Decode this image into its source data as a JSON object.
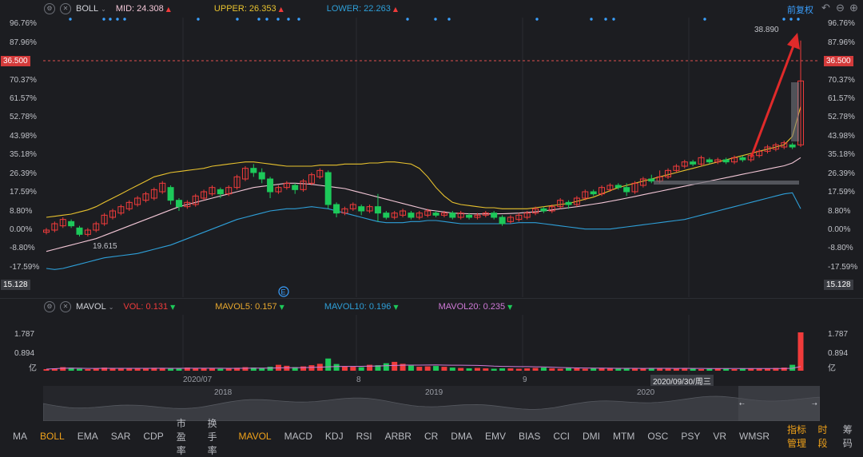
{
  "header": {
    "indicator": "BOLL",
    "mid": "MID: 24.308",
    "upper": "UPPER: 26.353",
    "lower": "LOWER: 22.263",
    "adjust": "前复权"
  },
  "price_axis": {
    "left": [
      "96.76%",
      "87.96%",
      "70.37%",
      "61.57%",
      "52.78%",
      "43.98%",
      "35.18%",
      "26.39%",
      "17.59%",
      "8.80%",
      "0.00%",
      "-8.80%",
      "-17.59%"
    ],
    "right": [
      "96.76%",
      "87.96%",
      "70.37%",
      "61.57%",
      "52.78%",
      "43.98%",
      "35.18%",
      "26.39%",
      "17.59%",
      "8.80%",
      "0.00%",
      "-8.80%",
      "-17.59%"
    ],
    "current_price": "36.500",
    "bottom_left": "15.128",
    "bottom_right": "15.128",
    "high_label": "38.890",
    "low_label": "19.615",
    "event_marker": "E"
  },
  "vol_header": {
    "name": "MAVOL",
    "vol": "VOL: 0.131",
    "mavol5": "MAVOL5: 0.157",
    "mavol10": "MAVOL10: 0.196",
    "mavol20": "MAVOL20: 0.235"
  },
  "vol_axis": {
    "left": [
      "1.787",
      "0.894",
      "亿"
    ],
    "right": [
      "1.787",
      "0.894",
      "亿"
    ]
  },
  "time_axis": {
    "ticks": [
      "2020/07",
      "8",
      "9"
    ],
    "cursor": "2020/09/30/周三"
  },
  "navigator": {
    "years": [
      "2018",
      "2019",
      "2020"
    ]
  },
  "tabs": [
    "MA",
    "BOLL",
    "EMA",
    "SAR",
    "CDP",
    "市盈率",
    "换手率",
    "MAVOL",
    "MACD",
    "KDJ",
    "RSI",
    "ARBR",
    "CR",
    "DMA",
    "EMV",
    "BIAS",
    "CCI",
    "DMI",
    "MTM",
    "OSC",
    "PSY",
    "VR",
    "WMSR",
    "指标管理",
    "时段",
    "筹码"
  ],
  "active_tabs": [
    "BOLL",
    "MAVOL",
    "指标管理",
    "时段"
  ],
  "colors": {
    "up": "#f03b3b",
    "down": "#1dc95a",
    "upper_line": "#e8c22e",
    "mid_line": "#f2c6d6",
    "lower_line": "#2e9fd8",
    "accent": "#f0a21a",
    "ref_line": "#e05050",
    "arrow": "#e02a2a"
  },
  "chart_data": {
    "type": "candlestick",
    "y_unit": "percent change",
    "ylim": [
      -17.59,
      96.76
    ],
    "candles_pct": [
      [
        -1,
        0,
        -2,
        1
      ],
      [
        0,
        3,
        -1,
        4
      ],
      [
        2,
        5,
        1,
        6
      ],
      [
        4,
        2,
        1,
        5
      ],
      [
        1,
        -2,
        -3,
        2
      ],
      [
        -2,
        0,
        -3,
        1
      ],
      [
        0,
        3,
        -1,
        4
      ],
      [
        3,
        7,
        2,
        8
      ],
      [
        6,
        9,
        5,
        10
      ],
      [
        8,
        11,
        7,
        12
      ],
      [
        10,
        13,
        9,
        14
      ],
      [
        12,
        15,
        11,
        16
      ],
      [
        14,
        17,
        13,
        18
      ],
      [
        15,
        19,
        14,
        20
      ],
      [
        18,
        22,
        17,
        23
      ],
      [
        20,
        14,
        12,
        21
      ],
      [
        14,
        11,
        9,
        15
      ],
      [
        11,
        13,
        10,
        14
      ],
      [
        12,
        16,
        11,
        17
      ],
      [
        15,
        18,
        14,
        19
      ],
      [
        17,
        20,
        16,
        21
      ],
      [
        19,
        17,
        15,
        20
      ],
      [
        17,
        20,
        16,
        21
      ],
      [
        20,
        25,
        19,
        26
      ],
      [
        24,
        29,
        23,
        30
      ],
      [
        29,
        27,
        25,
        31
      ],
      [
        27,
        24,
        22,
        29
      ],
      [
        24,
        18,
        15,
        25
      ],
      [
        18,
        20,
        17,
        21
      ],
      [
        20,
        22,
        19,
        23
      ],
      [
        21,
        19,
        17,
        22
      ],
      [
        19,
        23,
        18,
        24
      ],
      [
        22,
        26,
        21,
        27
      ],
      [
        25,
        28,
        24,
        29
      ],
      [
        27,
        12,
        10,
        28
      ],
      [
        12,
        8,
        6,
        13
      ],
      [
        8,
        10,
        7,
        11
      ],
      [
        10,
        12,
        9,
        13
      ],
      [
        11,
        9,
        7,
        12
      ],
      [
        9,
        11,
        8,
        12
      ],
      [
        11,
        8,
        4,
        17
      ],
      [
        8,
        6,
        5,
        9
      ],
      [
        6,
        8,
        5,
        9
      ],
      [
        7,
        9,
        6,
        10
      ],
      [
        8,
        6,
        5,
        9
      ],
      [
        6,
        8,
        5,
        9
      ],
      [
        7,
        9,
        6,
        10
      ],
      [
        8,
        7,
        6,
        9
      ],
      [
        7,
        8,
        6,
        9
      ],
      [
        8,
        6,
        5,
        9
      ],
      [
        6,
        8,
        5,
        9
      ],
      [
        7,
        6,
        5,
        8
      ],
      [
        6,
        7,
        5,
        8
      ],
      [
        7,
        8,
        6,
        9
      ],
      [
        8,
        6,
        5,
        9
      ],
      [
        6,
        3,
        2,
        7
      ],
      [
        4,
        6,
        3,
        7
      ],
      [
        5,
        7,
        4,
        8
      ],
      [
        6,
        8,
        5,
        9
      ],
      [
        8,
        10,
        7,
        11
      ],
      [
        10,
        9,
        8,
        11
      ],
      [
        9,
        11,
        8,
        12
      ],
      [
        11,
        14,
        10,
        15
      ],
      [
        13,
        12,
        10,
        14
      ],
      [
        12,
        15,
        11,
        16
      ],
      [
        15,
        18,
        14,
        19
      ],
      [
        18,
        17,
        16,
        19
      ],
      [
        17,
        20,
        16,
        21
      ],
      [
        19,
        21,
        18,
        22
      ],
      [
        21,
        20,
        19,
        22
      ],
      [
        20,
        18,
        16,
        22
      ],
      [
        18,
        22,
        17,
        23
      ],
      [
        21,
        24,
        20,
        25
      ],
      [
        24,
        23,
        22,
        26
      ],
      [
        23,
        25,
        22,
        28
      ],
      [
        25,
        28,
        24,
        29
      ],
      [
        28,
        30,
        27,
        31
      ],
      [
        30,
        32,
        29,
        33
      ],
      [
        32,
        31,
        30,
        33
      ],
      [
        31,
        34,
        30,
        35
      ],
      [
        33,
        32,
        31,
        34
      ],
      [
        32,
        33,
        31,
        34
      ],
      [
        33,
        32,
        31,
        34
      ],
      [
        32,
        34,
        31,
        35
      ],
      [
        34,
        33,
        32,
        35
      ],
      [
        33,
        35,
        32,
        36
      ],
      [
        35,
        37,
        34,
        38
      ],
      [
        37,
        39,
        36,
        40
      ],
      [
        38,
        40,
        37,
        41
      ],
      [
        39,
        41,
        38,
        42
      ],
      [
        40,
        39,
        38,
        41
      ],
      [
        40,
        70,
        39,
        89
      ]
    ],
    "volume_yi": [
      0.08,
      0.12,
      0.18,
      0.15,
      0.1,
      0.08,
      0.12,
      0.16,
      0.12,
      0.1,
      0.14,
      0.12,
      0.1,
      0.15,
      0.14,
      0.12,
      0.1,
      0.16,
      0.12,
      0.14,
      0.12,
      0.1,
      0.13,
      0.15,
      0.18,
      0.16,
      0.14,
      0.2,
      0.3,
      0.25,
      0.18,
      0.22,
      0.28,
      0.35,
      0.62,
      0.34,
      0.22,
      0.2,
      0.18,
      0.3,
      0.28,
      0.38,
      0.45,
      0.35,
      0.26,
      0.2,
      0.22,
      0.24,
      0.2,
      0.16,
      0.14,
      0.12,
      0.14,
      0.12,
      0.1,
      0.12,
      0.12,
      0.1,
      0.12,
      0.14,
      0.16,
      0.12,
      0.1,
      0.14,
      0.12,
      0.1,
      0.12,
      0.14,
      0.12,
      0.1,
      0.12,
      0.1,
      0.12,
      0.14,
      0.12,
      0.1,
      0.1,
      0.12,
      0.1,
      0.08,
      0.1,
      0.12,
      0.1,
      0.08,
      0.1,
      0.12,
      0.1,
      0.12,
      0.14,
      0.16,
      0.3,
      1.95
    ],
    "upper_pct": [
      6,
      6.5,
      7,
      7.5,
      8.5,
      9.5,
      11,
      13,
      15,
      17,
      19,
      21,
      23,
      25,
      26,
      27,
      27.5,
      28,
      28.5,
      29,
      30,
      30.5,
      31,
      31.5,
      32,
      32,
      31.5,
      31,
      30.5,
      30,
      30,
      30,
      30,
      30.5,
      30.5,
      30.5,
      31,
      31,
      31,
      31.5,
      31.5,
      32,
      32,
      31.5,
      31,
      29,
      25,
      20,
      16,
      13,
      12,
      11.5,
      11,
      10.5,
      10.5,
      10,
      10,
      10,
      10,
      10.5,
      11,
      11.5,
      12,
      12.5,
      13.5,
      14.5,
      15.5,
      17,
      18.5,
      20,
      21,
      22,
      23,
      24,
      25,
      26,
      27,
      28,
      29,
      30,
      31,
      32,
      33,
      34,
      35,
      36,
      37,
      38,
      39,
      40,
      44,
      58
    ],
    "mid_pct": [
      -10,
      -9,
      -8,
      -7,
      -6,
      -5,
      -4,
      -2.5,
      -1,
      0.5,
      2,
      3.5,
      5,
      6.5,
      8,
      9.5,
      11,
      12,
      13,
      14,
      15,
      16,
      17,
      18,
      19,
      20,
      20.5,
      21,
      21.5,
      22,
      22,
      21.8,
      21.5,
      21,
      20.5,
      20,
      19.5,
      18.5,
      17.5,
      16.5,
      15.5,
      14.5,
      13.5,
      12.5,
      11.5,
      10.5,
      9.5,
      9,
      8.5,
      8,
      7.8,
      7.7,
      7.6,
      7.6,
      7.6,
      7.7,
      7.8,
      8,
      8.3,
      8.6,
      9,
      9.5,
      10,
      10.5,
      11,
      11.6,
      12.2,
      12.8,
      13.5,
      14.2,
      15,
      15.8,
      16.6,
      17.4,
      18.2,
      19,
      19.8,
      20.6,
      21.4,
      22.2,
      23,
      23.8,
      24.6,
      25.4,
      26.2,
      27,
      27.8,
      28.6,
      29.4,
      30.2,
      31.5,
      34
    ],
    "lower_pct": [
      -18,
      -18.5,
      -18,
      -17,
      -16,
      -15,
      -14,
      -13,
      -12.5,
      -12,
      -11.5,
      -11,
      -10,
      -9,
      -8,
      -7,
      -5.5,
      -4,
      -2.5,
      -1,
      0.5,
      2,
      3.5,
      5,
      6,
      7,
      8,
      9,
      9.5,
      10,
      10,
      10.5,
      11,
      10.5,
      10,
      9,
      8,
      7,
      6,
      5,
      4,
      3.5,
      3.5,
      3.5,
      4,
      4,
      4.5,
      4.5,
      4,
      3.5,
      3,
      3,
      3,
      3,
      3,
      3,
      3,
      3.5,
      3.5,
      3.5,
      3,
      2.5,
      2,
      1.5,
      1,
      0.5,
      0.5,
      0.5,
      0.5,
      1,
      1.5,
      2,
      2.5,
      3,
      3.5,
      4,
      4.5,
      5,
      6,
      7,
      8,
      9,
      10,
      11,
      12,
      13,
      14,
      15,
      16,
      17,
      17.5,
      10
    ]
  }
}
